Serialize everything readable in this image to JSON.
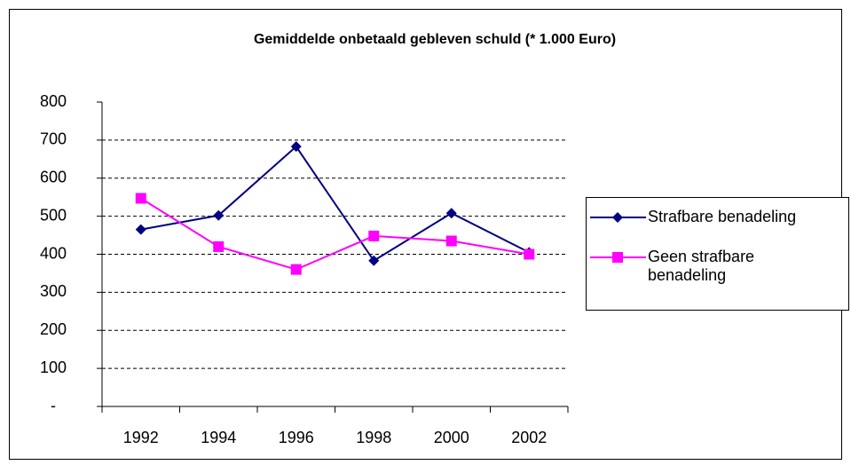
{
  "chart_data": {
    "type": "line",
    "title": "Gemiddelde onbetaald gebleven schuld (* 1.000 Euro)",
    "categories": [
      "1992",
      "1994",
      "1996",
      "1998",
      "2000",
      "2002"
    ],
    "series": [
      {
        "name": "Strafbare benadeling",
        "color": "#000080",
        "marker": "diamond",
        "values": [
          465,
          502,
          683,
          383,
          508,
          405
        ]
      },
      {
        "name": "Geen strafbare benadeling",
        "color": "#ff00ff",
        "marker": "square",
        "values": [
          547,
          420,
          360,
          448,
          435,
          400
        ]
      }
    ],
    "ylim": [
      0,
      800
    ],
    "yticks": [
      {
        "value": 0,
        "label": "-"
      },
      100,
      200,
      300,
      400,
      500,
      600,
      700,
      800
    ],
    "grid": true,
    "legend": "right"
  }
}
